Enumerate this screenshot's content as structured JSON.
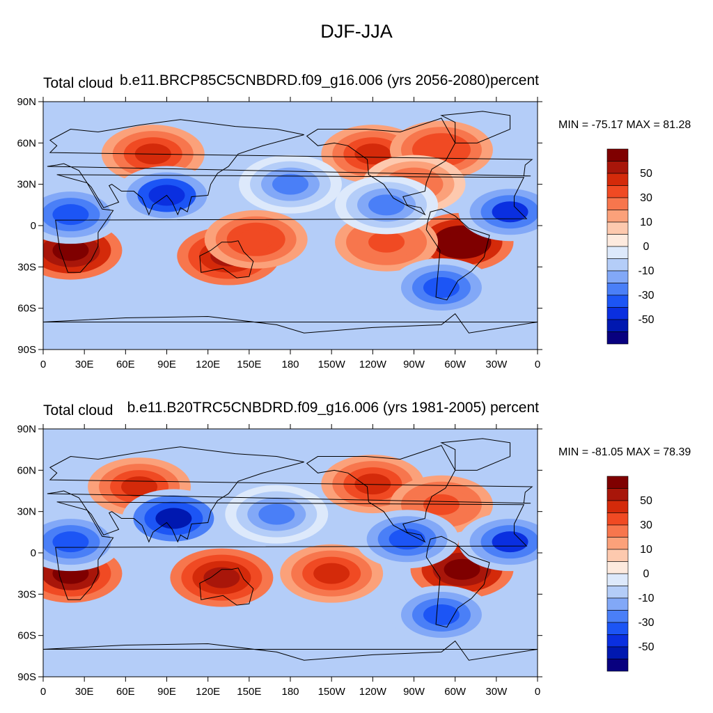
{
  "figure": {
    "title": "DJF-JJA"
  },
  "colors": {
    "palette": [
      "#08007f",
      "#0018b0",
      "#0a2fe0",
      "#1c55f5",
      "#4a7ff7",
      "#82a8f7",
      "#b4cdf8",
      "#dde9fb",
      "#fdeade",
      "#fdc9ae",
      "#fba17a",
      "#f7764d",
      "#f04a23",
      "#d42a0a",
      "#a8160a",
      "#7f0000"
    ],
    "land_outline": "#000000",
    "frame": "#000000"
  },
  "panels": [
    {
      "left_title": "Total cloud",
      "right_title": "b.e11.BRCP85C5CNBDRD.f09_g16.006 (yrs 2056-2080)percent",
      "stats": "MIN = -75.17 MAX =  81.28",
      "colorbar_labels": [
        "50",
        "30",
        "10",
        "0",
        "-10",
        "-30",
        "-50"
      ]
    },
    {
      "left_title": "Total cloud",
      "right_title": "b.e11.B20TRC5CNBDRD.f09_g16.006 (yrs 1981-2005)  percent",
      "stats": "MIN = -81.05 MAX =  78.39",
      "colorbar_labels": [
        "50",
        "30",
        "10",
        "0",
        "-10",
        "-30",
        "-50"
      ]
    }
  ],
  "map": {
    "projection": "cylindrical equidistant",
    "lon_range": [
      0,
      360
    ],
    "lat_range": [
      -90,
      90
    ],
    "lon_ticks": [
      {
        "lon": 0,
        "label": "0"
      },
      {
        "lon": 30,
        "label": "30E"
      },
      {
        "lon": 60,
        "label": "60E"
      },
      {
        "lon": 90,
        "label": "90E"
      },
      {
        "lon": 120,
        "label": "120E"
      },
      {
        "lon": 150,
        "label": "150E"
      },
      {
        "lon": 180,
        "label": "180"
      },
      {
        "lon": 210,
        "label": "150W"
      },
      {
        "lon": 240,
        "label": "120W"
      },
      {
        "lon": 270,
        "label": "90W"
      },
      {
        "lon": 300,
        "label": "60W"
      },
      {
        "lon": 330,
        "label": "30W"
      },
      {
        "lon": 360,
        "label": "0"
      }
    ],
    "lat_ticks": [
      {
        "lat": 90,
        "label": "90N"
      },
      {
        "lat": 60,
        "label": "60N"
      },
      {
        "lat": 30,
        "label": "30N"
      },
      {
        "lat": 0,
        "label": "0"
      },
      {
        "lat": -30,
        "label": "30S"
      },
      {
        "lat": -60,
        "label": "60S"
      },
      {
        "lat": -90,
        "label": "90S"
      }
    ]
  },
  "chart_data": [
    {
      "type": "heatmap",
      "title": "b.e11.BRCP85C5CNBDRD.f09_g16.006 (yrs 2056-2080)percent",
      "variable": "Total cloud",
      "units": "percent",
      "min": -75.17,
      "max": 81.28,
      "contour_levels": [
        -70,
        -60,
        -50,
        -40,
        -30,
        -20,
        -10,
        -5,
        0,
        5,
        10,
        20,
        30,
        40,
        50,
        60
      ],
      "colorbar_labels": [
        50,
        30,
        10,
        0,
        -10,
        -30,
        -50
      ],
      "xlim": [
        0,
        360
      ],
      "ylim": [
        -90,
        90
      ],
      "features": [
        {
          "lon": 20,
          "lat": -18,
          "value": 65
        },
        {
          "lon": 305,
          "lat": -12,
          "value": 70
        },
        {
          "lon": 135,
          "lat": -22,
          "value": 45
        },
        {
          "lon": 155,
          "lat": -10,
          "value": 30
        },
        {
          "lon": 80,
          "lat": 52,
          "value": 40
        },
        {
          "lon": 250,
          "lat": -12,
          "value": 25
        },
        {
          "lon": 240,
          "lat": 52,
          "value": 35
        },
        {
          "lon": 290,
          "lat": 55,
          "value": 28
        },
        {
          "lon": 270,
          "lat": 30,
          "value": 20
        },
        {
          "lon": 90,
          "lat": 22,
          "value": -55
        },
        {
          "lon": 20,
          "lat": 8,
          "value": -45
        },
        {
          "lon": 340,
          "lat": 10,
          "value": -50
        },
        {
          "lon": 250,
          "lat": 15,
          "value": -38
        },
        {
          "lon": 180,
          "lat": 30,
          "value": -30
        },
        {
          "lon": 290,
          "lat": -45,
          "value": -45
        }
      ]
    },
    {
      "type": "heatmap",
      "title": "b.e11.B20TRC5CNBDRD.f09_g16.006 (yrs 1981-2005)  percent",
      "variable": "Total cloud",
      "units": "percent",
      "min": -81.05,
      "max": 78.39,
      "contour_levels": [
        -70,
        -60,
        -50,
        -40,
        -30,
        -20,
        -10,
        -5,
        0,
        5,
        10,
        20,
        30,
        40,
        50,
        60
      ],
      "colorbar_labels": [
        50,
        30,
        10,
        0,
        -10,
        -30,
        -50
      ],
      "xlim": [
        0,
        360
      ],
      "ylim": [
        -90,
        90
      ],
      "features": [
        {
          "lon": 20,
          "lat": -15,
          "value": 60
        },
        {
          "lon": 305,
          "lat": -12,
          "value": 62
        },
        {
          "lon": 130,
          "lat": -18,
          "value": 45
        },
        {
          "lon": 210,
          "lat": -15,
          "value": 35
        },
        {
          "lon": 70,
          "lat": 48,
          "value": 38
        },
        {
          "lon": 240,
          "lat": 50,
          "value": 35
        },
        {
          "lon": 290,
          "lat": 35,
          "value": 22
        },
        {
          "lon": 95,
          "lat": 25,
          "value": -60
        },
        {
          "lon": 20,
          "lat": 8,
          "value": -45
        },
        {
          "lon": 340,
          "lat": 8,
          "value": -50
        },
        {
          "lon": 265,
          "lat": 10,
          "value": -45
        },
        {
          "lon": 170,
          "lat": 28,
          "value": -30
        },
        {
          "lon": 290,
          "lat": -45,
          "value": -45
        }
      ]
    }
  ]
}
